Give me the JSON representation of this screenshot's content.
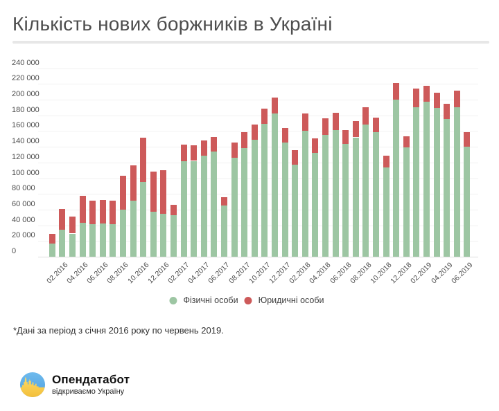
{
  "page": {
    "title": "Кількість нових боржників в Україні",
    "footnote": "*Дані за період з січня 2016 року по червень 2019.",
    "logo": {
      "name": "Опендатабот",
      "tagline": "відкриваємо Україну"
    }
  },
  "colors": {
    "individuals": "#9dc6a3",
    "legal_entities": "#cd5a5a",
    "grid": "#f1f1f1",
    "axis_line": "#dcdcdc",
    "tick_text": "#4b4b4b",
    "title_text": "#4e4e4e",
    "logo_blue": "#5fb2ea",
    "logo_yellow": "#ffd34d"
  },
  "chart_data": {
    "type": "bar",
    "stacked": true,
    "title": "Кількість нових боржників в Україні",
    "xlabel": "",
    "ylabel": "",
    "ylim": [
      0,
      240000
    ],
    "grid": true,
    "legend_position": "bottom",
    "y_ticks": [
      "0",
      "20 000",
      "40 000",
      "60 000",
      "80 000",
      "100 000",
      "120 000",
      "140 000",
      "160 000",
      "180 000",
      "200 000",
      "220 000",
      "240 000"
    ],
    "x_tick_labels": [
      "02.2016",
      "04.2016",
      "06.2016",
      "08.2016",
      "10.2016",
      "12.2016",
      "02.2017",
      "04.2017",
      "06.2017",
      "08.2017",
      "10.2017",
      "12.2017",
      "02.2018",
      "04.2018",
      "06.2018",
      "08.2018",
      "10.2018",
      "12.2018",
      "02.2019",
      "04.2019",
      "06.2019"
    ],
    "categories": [
      "01.2016",
      "02.2016",
      "03.2016",
      "04.2016",
      "05.2016",
      "06.2016",
      "07.2016",
      "08.2016",
      "09.2016",
      "10.2016",
      "11.2016",
      "12.2016",
      "01.2017",
      "02.2017",
      "03.2017",
      "04.2017",
      "05.2017",
      "06.2017",
      "07.2017",
      "08.2017",
      "09.2017",
      "10.2017",
      "11.2017",
      "12.2017",
      "01.2018",
      "02.2018",
      "03.2018",
      "04.2018",
      "05.2018",
      "06.2018",
      "07.2018",
      "08.2018",
      "09.2018",
      "10.2018",
      "11.2018",
      "12.2018",
      "01.2019",
      "02.2019",
      "03.2019",
      "04.2019",
      "05.2019",
      "06.2019"
    ],
    "series": [
      {
        "name": "Фізичні особи",
        "color": "#9dc6a3",
        "values": [
          16500,
          34500,
          29500,
          43500,
          41500,
          42500,
          41500,
          60000,
          71500,
          95000,
          57500,
          54500,
          53000,
          122000,
          122000,
          129000,
          134000,
          65000,
          126000,
          138000,
          149000,
          169000,
          182000,
          145500,
          117000,
          160000,
          132000,
          155000,
          161500,
          143500,
          152000,
          168000,
          158500,
          114000,
          200000,
          139000,
          190500,
          197000,
          189500,
          175000,
          190500,
          140000
        ]
      },
      {
        "name": "Юридичні особи",
        "color": "#cd5a5a",
        "values": [
          13000,
          26500,
          21500,
          34000,
          29500,
          30000,
          29500,
          43000,
          45000,
          57000,
          50500,
          55500,
          13000,
          20500,
          20000,
          19500,
          18500,
          10500,
          19500,
          21000,
          19500,
          20000,
          21000,
          18500,
          19000,
          22000,
          18500,
          21000,
          21500,
          18000,
          20500,
          22500,
          18500,
          14500,
          21500,
          14500,
          23500,
          20500,
          19500,
          19500,
          21000,
          18500
        ]
      }
    ]
  }
}
